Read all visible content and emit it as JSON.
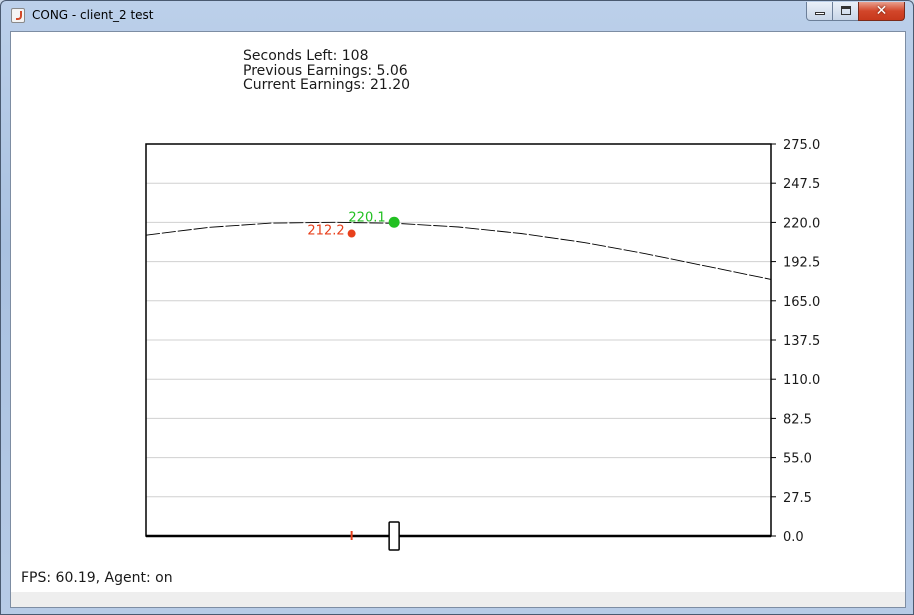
{
  "window": {
    "title": "CONG - client_2 test",
    "controls": {
      "minimize_icon": "minimize-icon",
      "maximize_icon": "maximize-icon",
      "close_icon": "close-icon",
      "close_glyph": "✕"
    }
  },
  "stats": {
    "seconds_left": "Seconds Left: 108",
    "previous_earnings": "Previous Earnings: 5.06",
    "current_earnings": "Current Earnings: 21.20"
  },
  "footer": {
    "fps": "FPS: 60.19, Agent: on"
  },
  "colors": {
    "own_marker": "#22c022",
    "other_marker": "#e8401c",
    "grid": "#d0d0d0",
    "curve": "#000000"
  },
  "chart_data": {
    "type": "line",
    "ylim": [
      0,
      275
    ],
    "xlim": [
      0,
      1
    ],
    "y_ticks": [
      "275.0",
      "247.5",
      "220.0",
      "192.5",
      "165.0",
      "137.5",
      "110.0",
      "82.5",
      "55.0",
      "27.5",
      "0.0"
    ],
    "grid": true,
    "curve": {
      "x": [
        0,
        0.1,
        0.2,
        0.3,
        0.4,
        0.5,
        0.6,
        0.7,
        0.8,
        0.9,
        1.0
      ],
      "y": [
        211,
        216.5,
        219.5,
        220.1,
        219.4,
        216.8,
        212.2,
        206,
        198,
        189,
        180
      ]
    },
    "points": [
      {
        "label": "220.1",
        "x": 0.397,
        "y": 220.1,
        "color": "#22c022",
        "role": "own"
      },
      {
        "label": "212.2",
        "x": 0.329,
        "y": 212.2,
        "color": "#e8401c",
        "role": "other"
      }
    ],
    "x_markers": [
      {
        "x": 0.329,
        "kind": "tick",
        "color": "#e8401c"
      },
      {
        "x": 0.397,
        "kind": "box",
        "color": "#000000"
      }
    ]
  }
}
